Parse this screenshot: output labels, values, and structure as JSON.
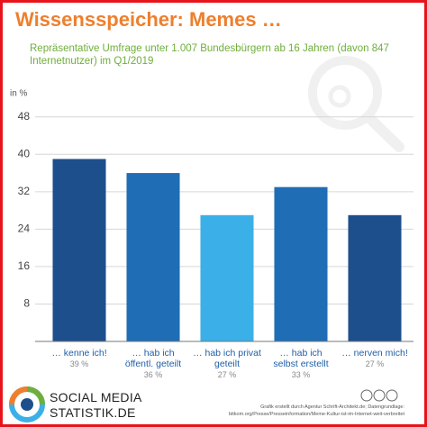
{
  "title": "Wissensspeicher: Memes …",
  "chart_data": {
    "type": "bar",
    "subtitle": "Repräsentative Umfrage unter 1.007 Bundesbürgern ab 16 Jahren (davon 847 Internetnutzer) im Q1/2019",
    "y_label": "in %",
    "categories": [
      "… kenne ich!",
      "… hab ich öffentl. geteilt",
      "… hab ich privat geteilt",
      "… hab ich selbst erstellt",
      "… nerven mich!"
    ],
    "values": [
      39,
      36,
      27,
      33,
      27
    ],
    "value_labels": [
      "39 %",
      "36 %",
      "27 %",
      "33 %",
      "27 %"
    ],
    "colors": [
      "#1d4f8c",
      "#1f6db5",
      "#3bb0e8",
      "#1f6db5",
      "#1d4f8c"
    ],
    "ylim": [
      0,
      52
    ],
    "yticks": [
      8,
      16,
      24,
      32,
      40,
      48
    ],
    "grid": true
  },
  "footer": {
    "brand": [
      "SOCIAL MEDIA",
      "STATISTIK.DE"
    ],
    "credit": [
      "Grafik erstellt durch Agentur Schrift-Architekt.de; Datengrundlage:",
      "bitkom.org/Presse/Presseinformation/Meme-Kultur-ist-im-Internet-weit-verbreitet"
    ]
  }
}
